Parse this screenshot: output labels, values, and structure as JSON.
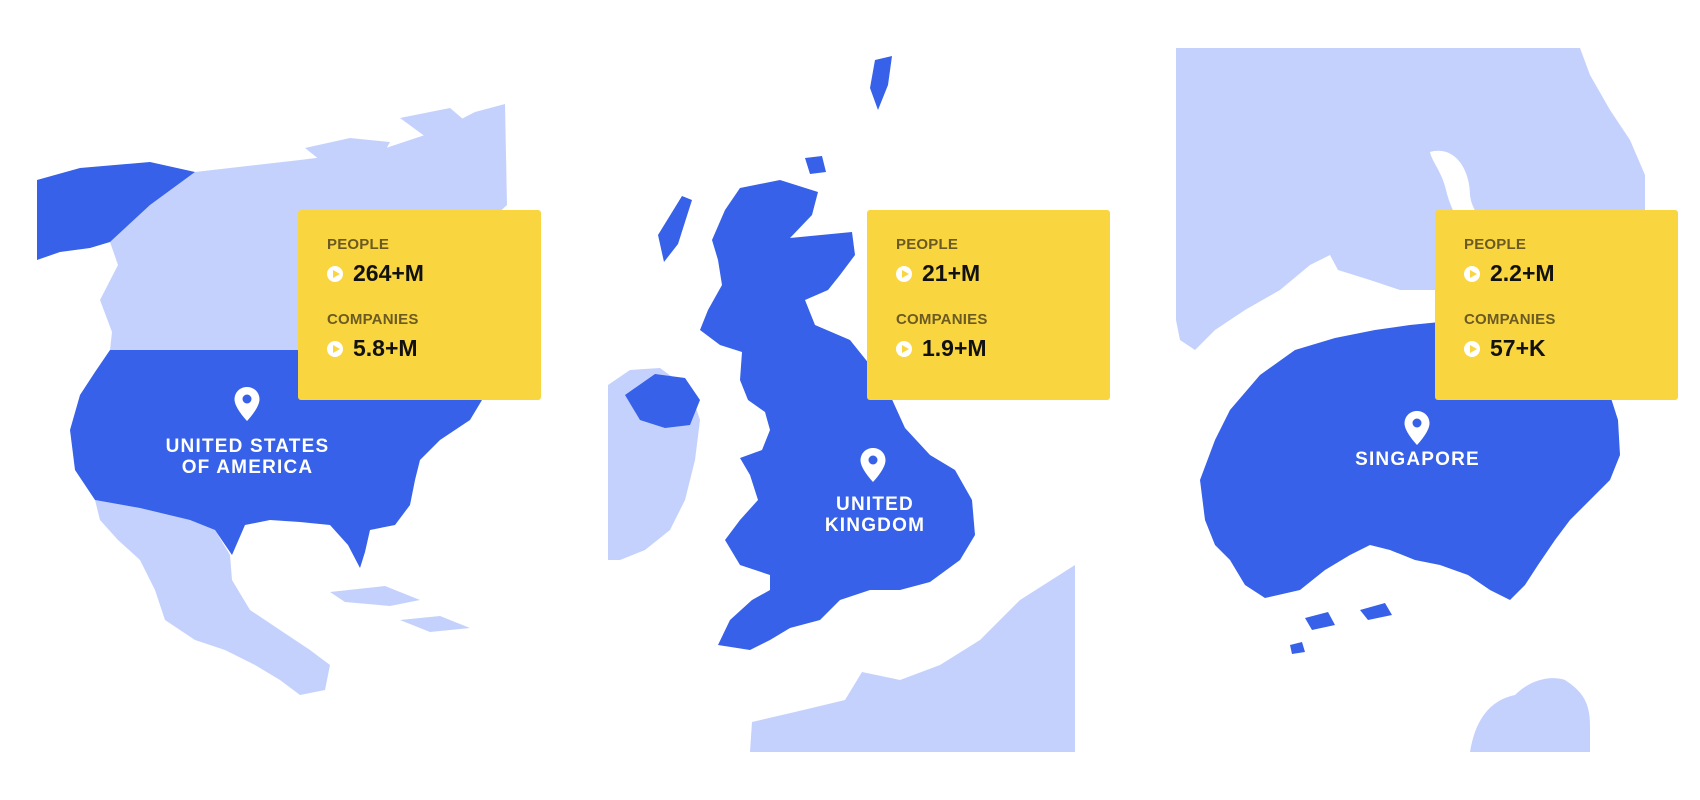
{
  "colors": {
    "highlight": "#3661e8",
    "land_light": "#c4d1fd",
    "card": "#f9d63f",
    "background": "#ffffff"
  },
  "icons": {
    "pin": "map-pin-icon",
    "bullet": "play-icon"
  },
  "maps": [
    {
      "country_line1": "UNITED STATES",
      "country_line2": "OF AMERICA",
      "people_label": "PEOPLE",
      "people_value": "264+M",
      "companies_label": "COMPANIES",
      "companies_value": "5.8+M"
    },
    {
      "country_line1": "UNITED",
      "country_line2": "KINGDOM",
      "people_label": "PEOPLE",
      "people_value": "21+M",
      "companies_label": "COMPANIES",
      "companies_value": "1.9+M"
    },
    {
      "country_line1": "SINGAPORE",
      "country_line2": "",
      "people_label": "PEOPLE",
      "people_value": "2.2+M",
      "companies_label": "COMPANIES",
      "companies_value": "57+K"
    }
  ]
}
